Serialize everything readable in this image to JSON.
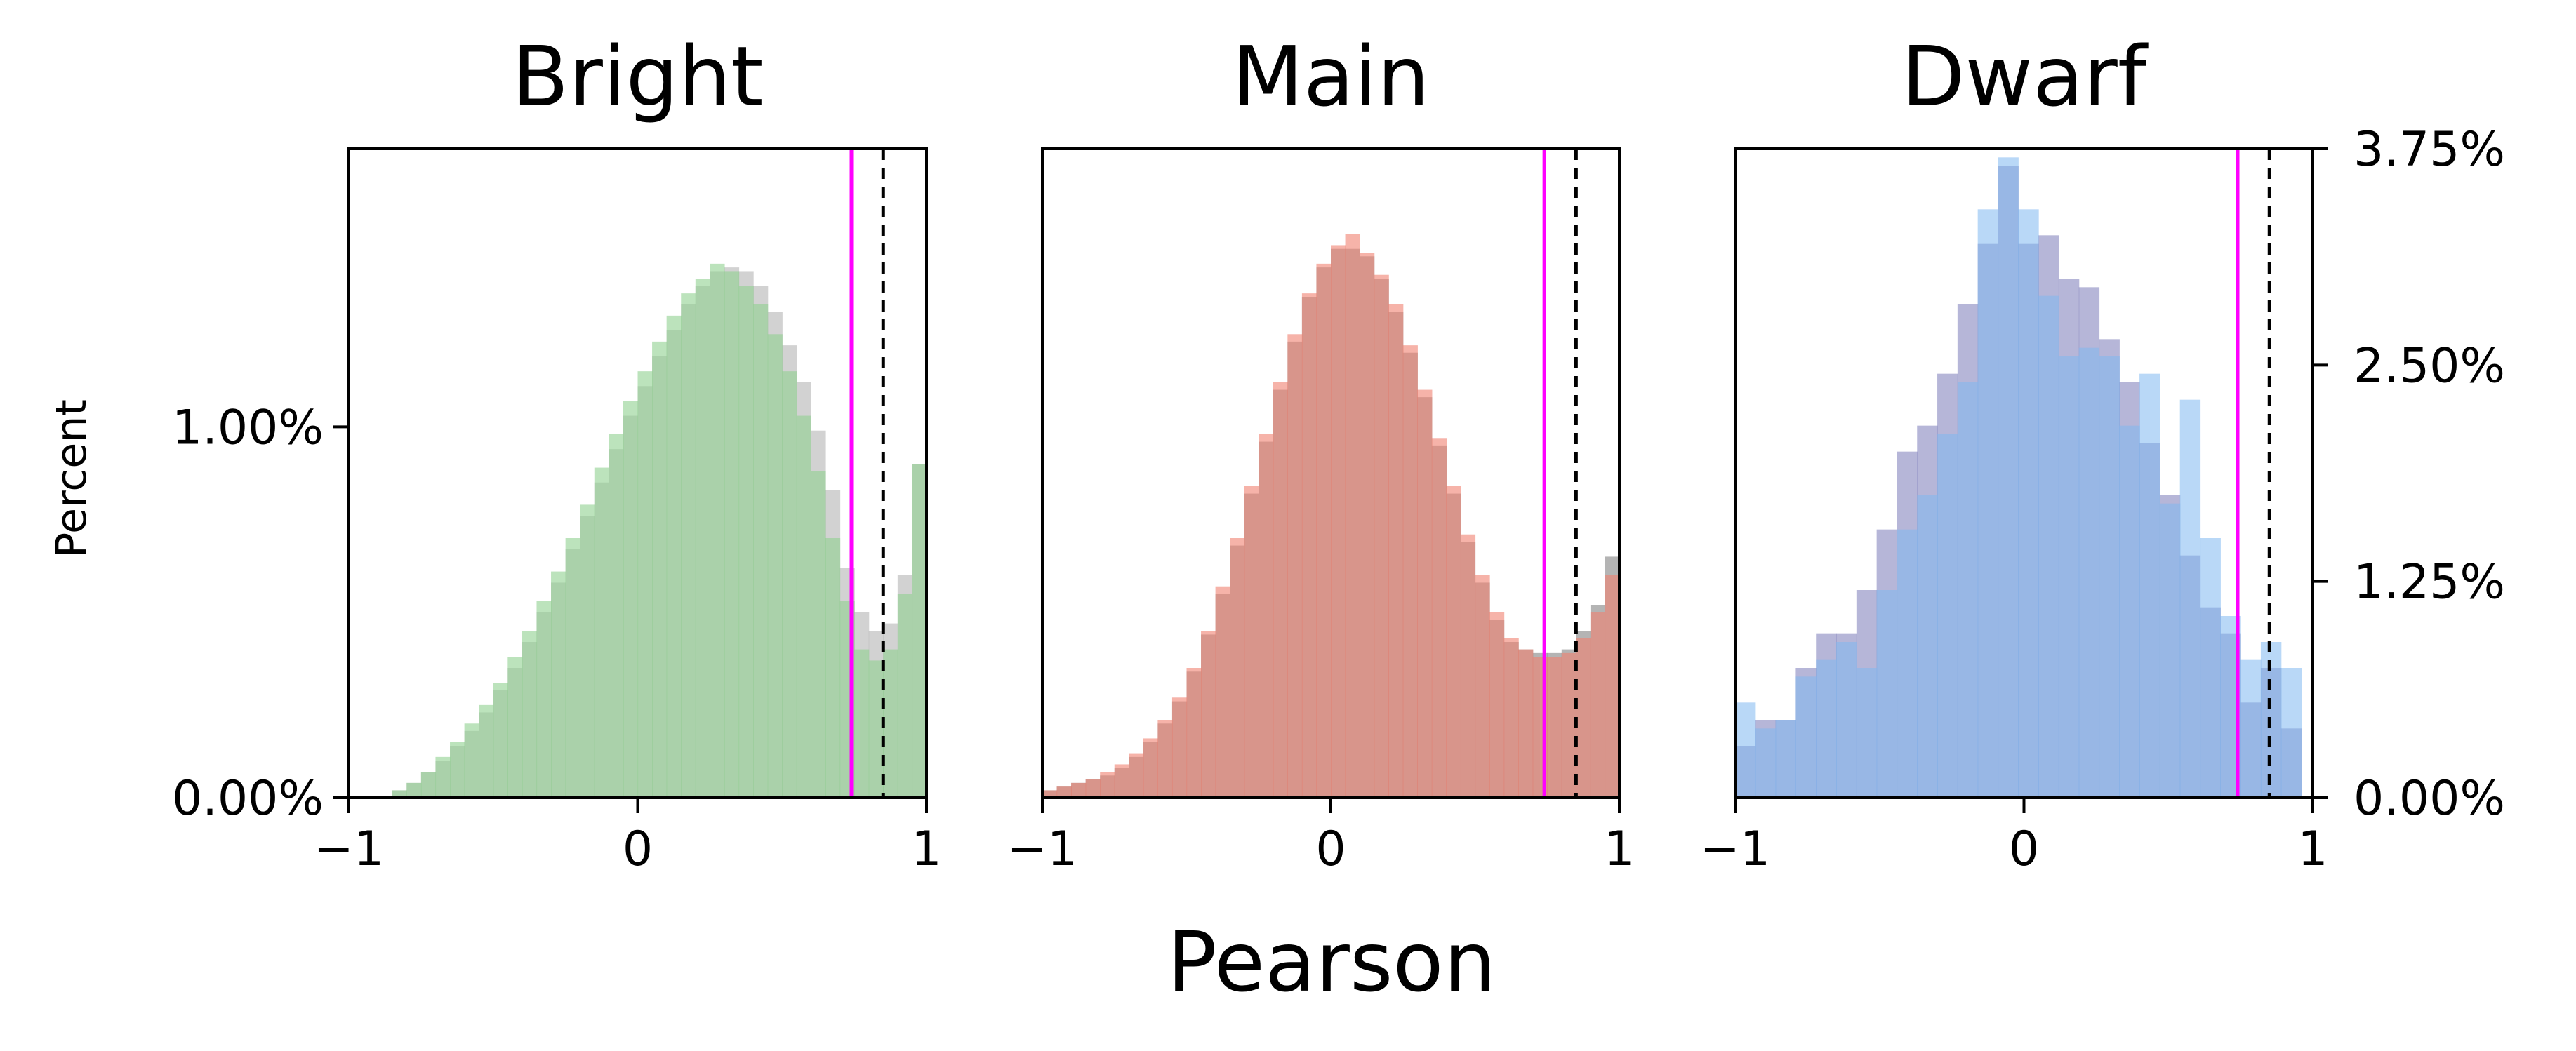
{
  "figure": {
    "xlabel": "Pearson",
    "ylabel": "Percent"
  },
  "colors": {
    "magenta_line": "#ff00ff",
    "dashed_line": "#000000"
  },
  "chart_data": [
    {
      "type": "histogram",
      "title": "Bright",
      "xlim": [
        -1,
        1
      ],
      "ylim": [
        0,
        1.75
      ],
      "xticks": [
        "−1",
        "0",
        "1"
      ],
      "yticks": [
        {
          "value": 0,
          "label": "0.00%"
        },
        {
          "value": 1.0,
          "label": "1.00%"
        }
      ],
      "ytick_side": "left",
      "vlines": [
        {
          "x": 0.74,
          "color": "#ff00ff",
          "style": "solid"
        },
        {
          "x": 0.85,
          "color": "#000000",
          "style": "dashed"
        }
      ],
      "series": [
        {
          "color": "#b4b4b4",
          "opacity": 0.6,
          "bins": [
            [
              -0.9,
              0.0
            ],
            [
              -0.85,
              0.02
            ],
            [
              -0.8,
              0.04
            ],
            [
              -0.75,
              0.07
            ],
            [
              -0.7,
              0.1
            ],
            [
              -0.65,
              0.14
            ],
            [
              -0.6,
              0.18
            ],
            [
              -0.55,
              0.23
            ],
            [
              -0.5,
              0.29
            ],
            [
              -0.45,
              0.35
            ],
            [
              -0.4,
              0.42
            ],
            [
              -0.35,
              0.5
            ],
            [
              -0.3,
              0.58
            ],
            [
              -0.25,
              0.67
            ],
            [
              -0.2,
              0.76
            ],
            [
              -0.15,
              0.85
            ],
            [
              -0.1,
              0.94
            ],
            [
              -0.05,
              1.03
            ],
            [
              0.0,
              1.11
            ],
            [
              0.05,
              1.19
            ],
            [
              0.1,
              1.26
            ],
            [
              0.15,
              1.33
            ],
            [
              0.2,
              1.38
            ],
            [
              0.25,
              1.42
            ],
            [
              0.3,
              1.43
            ],
            [
              0.35,
              1.42
            ],
            [
              0.4,
              1.38
            ],
            [
              0.45,
              1.31
            ],
            [
              0.5,
              1.22
            ],
            [
              0.55,
              1.12
            ],
            [
              0.6,
              0.99
            ],
            [
              0.65,
              0.83
            ],
            [
              0.7,
              0.62
            ],
            [
              0.75,
              0.5
            ],
            [
              0.8,
              0.45
            ],
            [
              0.85,
              0.47
            ],
            [
              0.9,
              0.6
            ],
            [
              0.95,
              0.9
            ]
          ]
        },
        {
          "color": "#90d090",
          "opacity": 0.6,
          "bins": [
            [
              -0.9,
              0.0
            ],
            [
              -0.85,
              0.02
            ],
            [
              -0.8,
              0.04
            ],
            [
              -0.75,
              0.07
            ],
            [
              -0.7,
              0.11
            ],
            [
              -0.65,
              0.15
            ],
            [
              -0.6,
              0.2
            ],
            [
              -0.55,
              0.25
            ],
            [
              -0.5,
              0.31
            ],
            [
              -0.45,
              0.38
            ],
            [
              -0.4,
              0.45
            ],
            [
              -0.35,
              0.53
            ],
            [
              -0.3,
              0.61
            ],
            [
              -0.25,
              0.7
            ],
            [
              -0.2,
              0.79
            ],
            [
              -0.15,
              0.89
            ],
            [
              -0.1,
              0.98
            ],
            [
              -0.05,
              1.07
            ],
            [
              0.0,
              1.15
            ],
            [
              0.05,
              1.23
            ],
            [
              0.1,
              1.3
            ],
            [
              0.15,
              1.36
            ],
            [
              0.2,
              1.4
            ],
            [
              0.25,
              1.44
            ],
            [
              0.3,
              1.42
            ],
            [
              0.35,
              1.38
            ],
            [
              0.4,
              1.33
            ],
            [
              0.45,
              1.25
            ],
            [
              0.5,
              1.15
            ],
            [
              0.55,
              1.03
            ],
            [
              0.6,
              0.88
            ],
            [
              0.65,
              0.7
            ],
            [
              0.7,
              0.53
            ],
            [
              0.75,
              0.4
            ],
            [
              0.8,
              0.37
            ],
            [
              0.85,
              0.4
            ],
            [
              0.9,
              0.55
            ],
            [
              0.95,
              0.9
            ]
          ]
        }
      ]
    },
    {
      "type": "histogram",
      "title": "Main",
      "xlim": [
        -1,
        1
      ],
      "ylim": [
        0,
        1.75
      ],
      "xticks": [
        "−1",
        "0",
        "1"
      ],
      "yticks": [],
      "ytick_side": "none",
      "vlines": [
        {
          "x": 0.74,
          "color": "#ff00ff",
          "style": "solid"
        },
        {
          "x": 0.85,
          "color": "#000000",
          "style": "dashed"
        }
      ],
      "series": [
        {
          "color": "#8c8c8c",
          "opacity": 0.65,
          "bins": [
            [
              -1.0,
              0.02
            ],
            [
              -0.95,
              0.03
            ],
            [
              -0.9,
              0.04
            ],
            [
              -0.85,
              0.05
            ],
            [
              -0.8,
              0.06
            ],
            [
              -0.75,
              0.08
            ],
            [
              -0.7,
              0.11
            ],
            [
              -0.65,
              0.15
            ],
            [
              -0.6,
              0.2
            ],
            [
              -0.55,
              0.26
            ],
            [
              -0.5,
              0.34
            ],
            [
              -0.45,
              0.44
            ],
            [
              -0.4,
              0.55
            ],
            [
              -0.35,
              0.68
            ],
            [
              -0.3,
              0.82
            ],
            [
              -0.25,
              0.96
            ],
            [
              -0.2,
              1.1
            ],
            [
              -0.15,
              1.23
            ],
            [
              -0.1,
              1.35
            ],
            [
              -0.05,
              1.43
            ],
            [
              0.0,
              1.48
            ],
            [
              0.05,
              1.48
            ],
            [
              0.1,
              1.46
            ],
            [
              0.15,
              1.4
            ],
            [
              0.2,
              1.31
            ],
            [
              0.25,
              1.2
            ],
            [
              0.3,
              1.08
            ],
            [
              0.35,
              0.95
            ],
            [
              0.4,
              0.82
            ],
            [
              0.45,
              0.69
            ],
            [
              0.5,
              0.58
            ],
            [
              0.55,
              0.48
            ],
            [
              0.6,
              0.42
            ],
            [
              0.65,
              0.4
            ],
            [
              0.7,
              0.39
            ],
            [
              0.75,
              0.39
            ],
            [
              0.8,
              0.4
            ],
            [
              0.85,
              0.45
            ],
            [
              0.9,
              0.52
            ],
            [
              0.95,
              0.65
            ]
          ]
        },
        {
          "color": "#f08070",
          "opacity": 0.6,
          "bins": [
            [
              -1.0,
              0.02
            ],
            [
              -0.95,
              0.03
            ],
            [
              -0.9,
              0.04
            ],
            [
              -0.85,
              0.05
            ],
            [
              -0.8,
              0.07
            ],
            [
              -0.75,
              0.09
            ],
            [
              -0.7,
              0.12
            ],
            [
              -0.65,
              0.16
            ],
            [
              -0.6,
              0.21
            ],
            [
              -0.55,
              0.27
            ],
            [
              -0.5,
              0.35
            ],
            [
              -0.45,
              0.45
            ],
            [
              -0.4,
              0.57
            ],
            [
              -0.35,
              0.7
            ],
            [
              -0.3,
              0.84
            ],
            [
              -0.25,
              0.98
            ],
            [
              -0.2,
              1.12
            ],
            [
              -0.15,
              1.25
            ],
            [
              -0.1,
              1.36
            ],
            [
              -0.05,
              1.44
            ],
            [
              0.0,
              1.49
            ],
            [
              0.05,
              1.52
            ],
            [
              0.1,
              1.47
            ],
            [
              0.15,
              1.41
            ],
            [
              0.2,
              1.33
            ],
            [
              0.25,
              1.22
            ],
            [
              0.3,
              1.1
            ],
            [
              0.35,
              0.97
            ],
            [
              0.4,
              0.84
            ],
            [
              0.45,
              0.71
            ],
            [
              0.5,
              0.6
            ],
            [
              0.55,
              0.5
            ],
            [
              0.6,
              0.43
            ],
            [
              0.65,
              0.4
            ],
            [
              0.7,
              0.38
            ],
            [
              0.75,
              0.38
            ],
            [
              0.8,
              0.39
            ],
            [
              0.85,
              0.43
            ],
            [
              0.9,
              0.5
            ],
            [
              0.95,
              0.6
            ]
          ]
        }
      ]
    },
    {
      "type": "histogram",
      "title": "Dwarf",
      "xlim": [
        -1,
        1
      ],
      "ylim": [
        0,
        3.75
      ],
      "xticks": [
        "−1",
        "0",
        "1"
      ],
      "yticks": [
        {
          "value": 0,
          "label": "0.00%"
        },
        {
          "value": 1.25,
          "label": "1.25%"
        },
        {
          "value": 2.5,
          "label": "2.50%"
        },
        {
          "value": 3.75,
          "label": "3.75%"
        }
      ],
      "ytick_side": "right",
      "vlines": [
        {
          "x": 0.74,
          "color": "#ff00ff",
          "style": "solid"
        },
        {
          "x": 0.85,
          "color": "#000000",
          "style": "dashed"
        }
      ],
      "series": [
        {
          "color": "#7a7ab8",
          "opacity": 0.55,
          "bins": [
            [
              -1.0,
              0.3
            ],
            [
              -0.93,
              0.45
            ],
            [
              -0.86,
              0.45
            ],
            [
              -0.79,
              0.75
            ],
            [
              -0.72,
              0.95
            ],
            [
              -0.65,
              0.95
            ],
            [
              -0.58,
              1.2
            ],
            [
              -0.51,
              1.55
            ],
            [
              -0.44,
              2.0
            ],
            [
              -0.37,
              2.15
            ],
            [
              -0.3,
              2.45
            ],
            [
              -0.23,
              2.85
            ],
            [
              -0.16,
              3.2
            ],
            [
              -0.09,
              3.65
            ],
            [
              -0.02,
              3.2
            ],
            [
              0.05,
              3.25
            ],
            [
              0.12,
              3.0
            ],
            [
              0.19,
              2.95
            ],
            [
              0.26,
              2.65
            ],
            [
              0.33,
              2.4
            ],
            [
              0.4,
              2.05
            ],
            [
              0.47,
              1.75
            ],
            [
              0.54,
              1.4
            ],
            [
              0.61,
              1.1
            ],
            [
              0.68,
              0.95
            ],
            [
              0.75,
              0.55
            ],
            [
              0.82,
              0.75
            ],
            [
              0.89,
              0.4
            ]
          ]
        },
        {
          "color": "#80b8f0",
          "opacity": 0.55,
          "bins": [
            [
              -1.0,
              0.55
            ],
            [
              -0.93,
              0.4
            ],
            [
              -0.86,
              0.45
            ],
            [
              -0.79,
              0.7
            ],
            [
              -0.72,
              0.8
            ],
            [
              -0.65,
              0.9
            ],
            [
              -0.58,
              0.75
            ],
            [
              -0.51,
              1.2
            ],
            [
              -0.44,
              1.55
            ],
            [
              -0.37,
              1.75
            ],
            [
              -0.3,
              2.1
            ],
            [
              -0.23,
              2.4
            ],
            [
              -0.16,
              3.4
            ],
            [
              -0.09,
              3.7
            ],
            [
              -0.02,
              3.4
            ],
            [
              0.05,
              2.9
            ],
            [
              0.12,
              2.55
            ],
            [
              0.19,
              2.6
            ],
            [
              0.26,
              2.55
            ],
            [
              0.33,
              2.15
            ],
            [
              0.4,
              2.45
            ],
            [
              0.47,
              1.7
            ],
            [
              0.54,
              2.3
            ],
            [
              0.61,
              1.5
            ],
            [
              0.68,
              1.05
            ],
            [
              0.75,
              0.8
            ],
            [
              0.82,
              0.9
            ],
            [
              0.89,
              0.75
            ]
          ]
        }
      ]
    }
  ]
}
